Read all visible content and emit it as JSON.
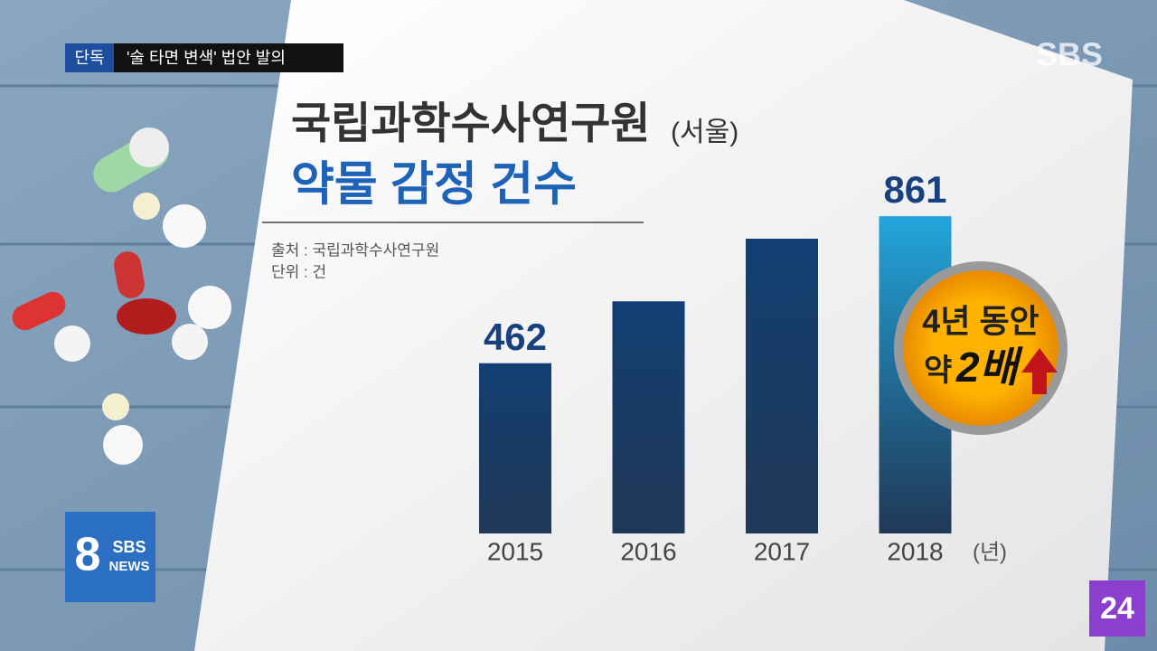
{
  "header": {
    "tag": "단독",
    "headline": "'술 타면 변색' 법안 발의",
    "channel": "SBS"
  },
  "chart_data": {
    "type": "bar",
    "title": "국립과학수사연구원",
    "title_suffix": "(서울)",
    "subtitle": "약물 감정 건수",
    "source": "출처 : 국립과학수사연구원",
    "unit": "단위 : 건",
    "x_unit": "(년)",
    "categories": [
      "2015",
      "2016",
      "2017",
      "2018"
    ],
    "values": [
      462,
      630,
      800,
      861
    ],
    "value_labels": [
      "462",
      null,
      null,
      "861"
    ],
    "colors": [
      "#123f73",
      "#123f73",
      "#123f73",
      "#22a6dc"
    ],
    "annotation": {
      "line1": "4년 동안",
      "prefix": "약",
      "emphasis": "2배"
    }
  },
  "logos": {
    "number": "8",
    "brand": "SBS",
    "news": "NEWS",
    "corner": "24"
  }
}
